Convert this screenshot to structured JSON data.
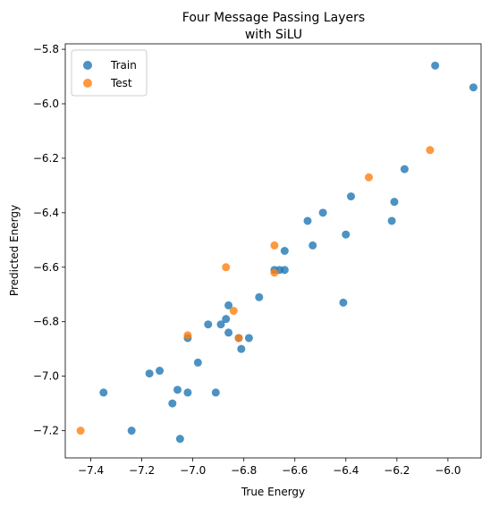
{
  "chart_data": {
    "type": "scatter",
    "title_lines": [
      "Four Message Passing Layers",
      "with SiLU"
    ],
    "xlabel": "True Energy",
    "ylabel": "Predicted Energy",
    "xlim": [
      -7.5,
      -5.87
    ],
    "ylim": [
      -7.3,
      -5.78
    ],
    "xticks": [
      -7.4,
      -7.2,
      -7.0,
      -6.8,
      -6.6,
      -6.4,
      -6.2,
      -6.0
    ],
    "xtick_labels": [
      "−7.4",
      "−7.2",
      "−7.0",
      "−6.8",
      "−6.6",
      "−6.4",
      "−6.2",
      "−6.0"
    ],
    "yticks": [
      -7.2,
      -7.0,
      -6.8,
      -6.6,
      -6.4,
      -6.2,
      -6.0,
      -5.8
    ],
    "ytick_labels": [
      "−7.2",
      "−7.0",
      "−6.8",
      "−6.6",
      "−6.4",
      "−6.2",
      "−6.0",
      "−5.8"
    ],
    "legend_position": "upper-left",
    "series": [
      {
        "name": "Train",
        "color": "#1f77b4",
        "points": [
          [
            -7.35,
            -7.06
          ],
          [
            -7.24,
            -7.2
          ],
          [
            -7.17,
            -6.99
          ],
          [
            -7.13,
            -6.98
          ],
          [
            -7.08,
            -7.1
          ],
          [
            -7.06,
            -7.05
          ],
          [
            -7.05,
            -7.23
          ],
          [
            -7.02,
            -6.86
          ],
          [
            -7.02,
            -7.06
          ],
          [
            -6.98,
            -6.95
          ],
          [
            -6.94,
            -6.81
          ],
          [
            -6.91,
            -7.06
          ],
          [
            -6.89,
            -6.81
          ],
          [
            -6.87,
            -6.79
          ],
          [
            -6.86,
            -6.74
          ],
          [
            -6.86,
            -6.84
          ],
          [
            -6.82,
            -6.86
          ],
          [
            -6.81,
            -6.9
          ],
          [
            -6.78,
            -6.86
          ],
          [
            -6.74,
            -6.71
          ],
          [
            -6.68,
            -6.61
          ],
          [
            -6.66,
            -6.61
          ],
          [
            -6.64,
            -6.54
          ],
          [
            -6.64,
            -6.61
          ],
          [
            -6.55,
            -6.43
          ],
          [
            -6.53,
            -6.52
          ],
          [
            -6.49,
            -6.4
          ],
          [
            -6.41,
            -6.73
          ],
          [
            -6.4,
            -6.48
          ],
          [
            -6.38,
            -6.34
          ],
          [
            -6.22,
            -6.43
          ],
          [
            -6.21,
            -6.36
          ],
          [
            -6.17,
            -6.24
          ],
          [
            -6.05,
            -5.86
          ],
          [
            -5.9,
            -5.94
          ]
        ]
      },
      {
        "name": "Test",
        "color": "#ff7f0e",
        "points": [
          [
            -7.44,
            -7.2
          ],
          [
            -7.02,
            -6.85
          ],
          [
            -6.87,
            -6.6
          ],
          [
            -6.84,
            -6.76
          ],
          [
            -6.82,
            -6.86
          ],
          [
            -6.68,
            -6.52
          ],
          [
            -6.68,
            -6.62
          ],
          [
            -6.31,
            -6.27
          ],
          [
            -6.07,
            -6.17
          ]
        ]
      }
    ]
  }
}
